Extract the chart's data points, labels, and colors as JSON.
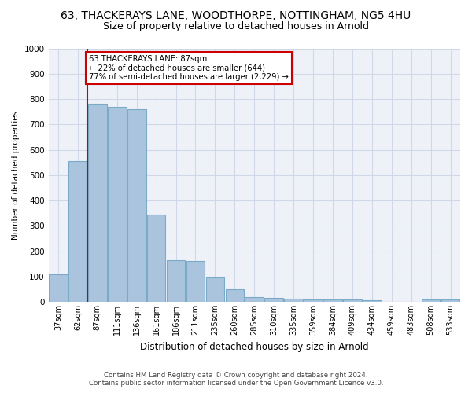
{
  "title1": "63, THACKERAYS LANE, WOODTHORPE, NOTTINGHAM, NG5 4HU",
  "title2": "Size of property relative to detached houses in Arnold",
  "xlabel": "Distribution of detached houses by size in Arnold",
  "ylabel": "Number of detached properties",
  "property_label": "63 THACKERAYS LANE: 87sqm",
  "annotation_line1": "← 22% of detached houses are smaller (644)",
  "annotation_line2": "77% of semi-detached houses are larger (2,229) →",
  "footer1": "Contains HM Land Registry data © Crown copyright and database right 2024.",
  "footer2": "Contains public sector information licensed under the Open Government Licence v3.0.",
  "categories": [
    "37sqm",
    "62sqm",
    "87sqm",
    "111sqm",
    "136sqm",
    "161sqm",
    "186sqm",
    "211sqm",
    "235sqm",
    "260sqm",
    "285sqm",
    "310sqm",
    "335sqm",
    "359sqm",
    "384sqm",
    "409sqm",
    "434sqm",
    "459sqm",
    "483sqm",
    "508sqm",
    "533sqm"
  ],
  "values": [
    110,
    555,
    780,
    770,
    760,
    345,
    165,
    160,
    95,
    50,
    20,
    15,
    12,
    10,
    10,
    10,
    5,
    0,
    0,
    10,
    10
  ],
  "bar_color": "#aac4de",
  "bar_edge_color": "#7aaac8",
  "highlight_index": 2,
  "highlight_color": "#cc0000",
  "ylim": [
    0,
    1000
  ],
  "yticks": [
    0,
    100,
    200,
    300,
    400,
    500,
    600,
    700,
    800,
    900,
    1000
  ],
  "background_color": "#ffffff",
  "grid_color": "#d0d8e8",
  "title1_fontsize": 10,
  "title2_fontsize": 9
}
